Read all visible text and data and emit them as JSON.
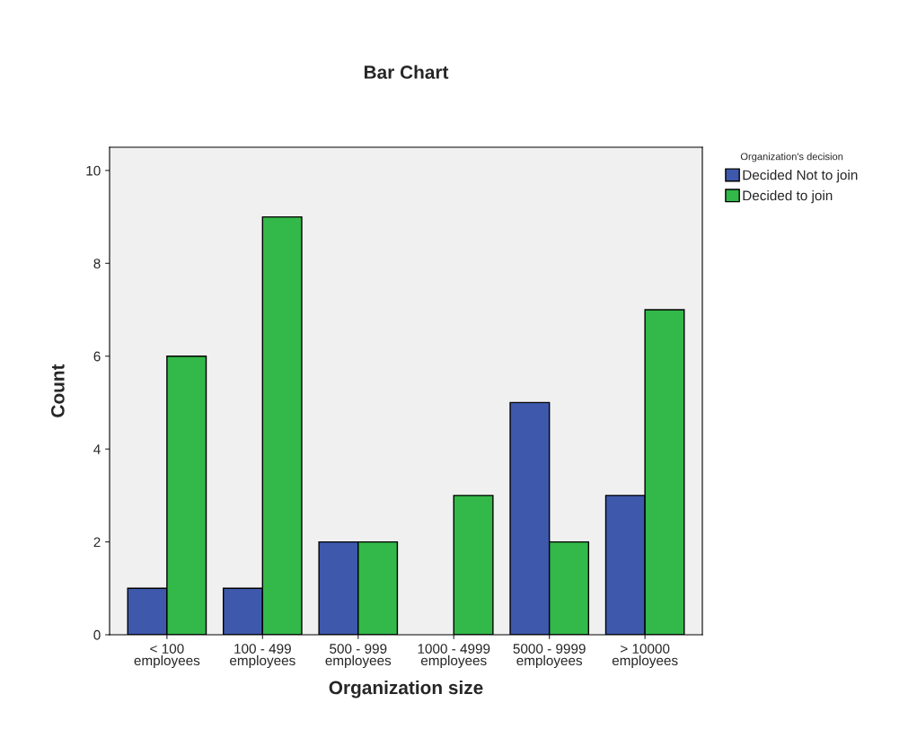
{
  "chart_data": {
    "type": "bar",
    "title": "Bar Chart",
    "xlabel": "Organization size",
    "ylabel": "Count",
    "categories": [
      "< 100\nemployees",
      "100 - 499\nemployees",
      "500 - 999\nemployees",
      "1000 - 4999\nemployees",
      "5000 - 9999\nemployees",
      "> 10000\nemployees"
    ],
    "series": [
      {
        "name": "Decided Not to join",
        "color": "#3e58ac",
        "values": [
          1,
          1,
          2,
          null,
          5,
          3
        ]
      },
      {
        "name": "Decided to join",
        "color": "#33b84a",
        "values": [
          6,
          9,
          2,
          3,
          2,
          7
        ]
      }
    ],
    "legend_title": "Organization's decision",
    "legend": "top right",
    "ylim": [
      0,
      10.5
    ],
    "yticks": [
      0,
      2,
      4,
      6,
      8,
      10
    ],
    "grid": false
  }
}
